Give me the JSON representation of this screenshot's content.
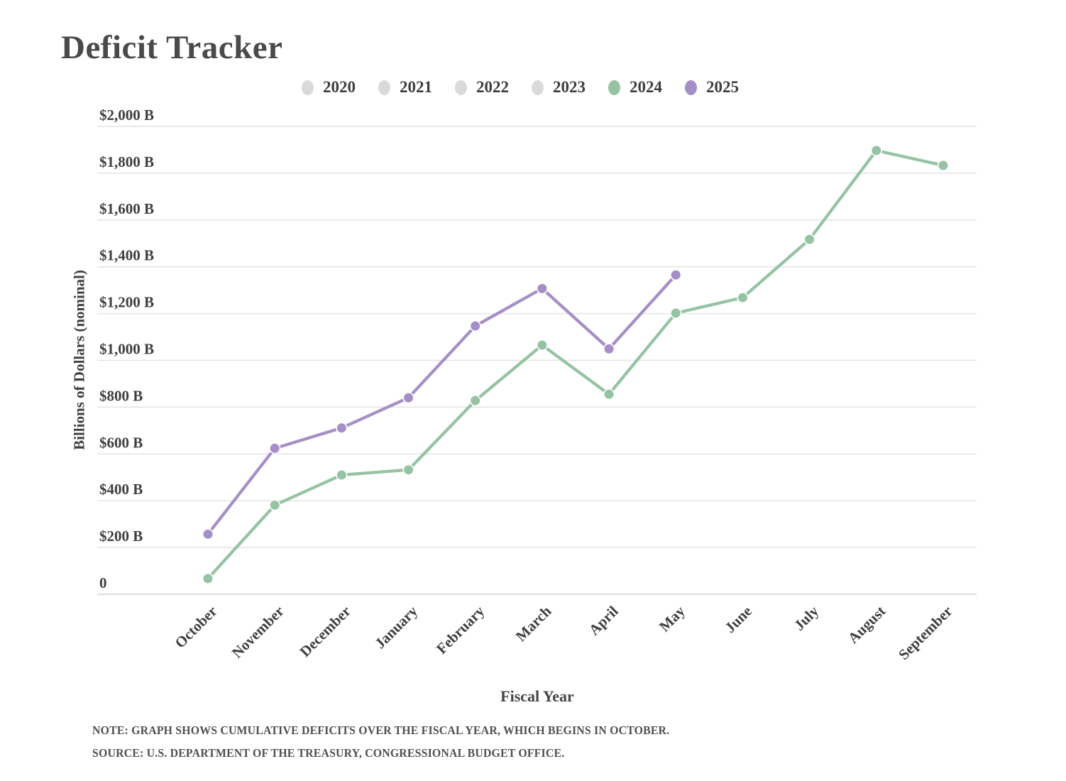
{
  "title": "Deficit Tracker",
  "legend": {
    "items": [
      {
        "label": "2020",
        "color": "#dadada",
        "active": false
      },
      {
        "label": "2021",
        "color": "#dadada",
        "active": false
      },
      {
        "label": "2022",
        "color": "#dadada",
        "active": false
      },
      {
        "label": "2023",
        "color": "#dadada",
        "active": false
      },
      {
        "label": "2024",
        "color": "#95c3a3",
        "active": true
      },
      {
        "label": "2025",
        "color": "#a68fc6",
        "active": true
      }
    ]
  },
  "chart_data": {
    "type": "line",
    "title": "Deficit Tracker",
    "xlabel": "Fiscal Year",
    "ylabel": "Billions of Dollars (nominal)",
    "categories": [
      "October",
      "November",
      "December",
      "January",
      "February",
      "March",
      "April",
      "May",
      "June",
      "July",
      "August",
      "September"
    ],
    "ylim": [
      0,
      2000
    ],
    "y_tick_step": 200,
    "y_tick_labels": [
      "0",
      "$200 B",
      "$400 B",
      "$600 B",
      "$800 B",
      "$1,000 B",
      "$1,200 B",
      "$1,400 B",
      "$1,600 B",
      "$1,800 B",
      "$2,000 B"
    ],
    "grid": "horizontal",
    "legend_position": "top",
    "inactive_series": [
      "2020",
      "2021",
      "2022",
      "2023"
    ],
    "series": [
      {
        "name": "2024",
        "color": "#95c3a3",
        "values": [
          67,
          381,
          510,
          532,
          828,
          1065,
          855,
          1202,
          1268,
          1517,
          1897,
          1833
        ]
      },
      {
        "name": "2025",
        "color": "#a68fc6",
        "values": [
          257,
          624,
          711,
          840,
          1147,
          1307,
          1049,
          1365
        ]
      }
    ]
  },
  "notes": {
    "note": "NOTE: GRAPH SHOWS CUMULATIVE DEFICITS OVER THE FISCAL YEAR, WHICH BEGINS IN OCTOBER.",
    "source": "SOURCE: U.S. DEPARTMENT OF THE TREASURY, CONGRESSIONAL BUDGET OFFICE."
  },
  "colors": {
    "background": "#ffffff",
    "title_text": "#4a4a4a",
    "axis_text": "#3f3f3f",
    "grid_line": "#e4e4e4",
    "baseline": "#d4d4d4"
  }
}
